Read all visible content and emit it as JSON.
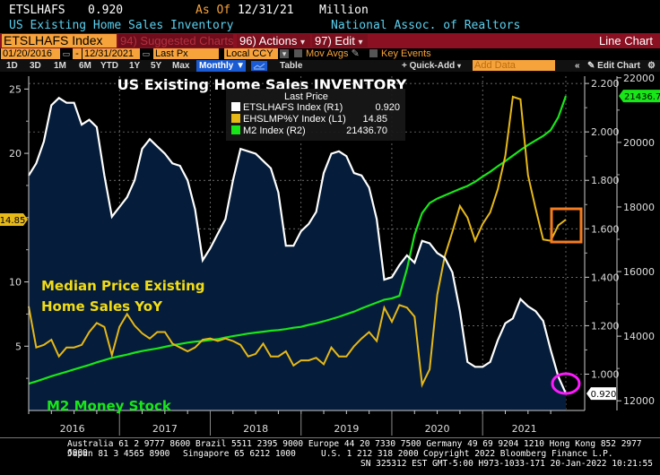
{
  "header": {
    "ticker": "ETSLHAFS",
    "last_value": "0.920",
    "as_of_label": "As Of",
    "as_of_date": "12/31/21",
    "unit": "Million",
    "description": "US Existing Home Sales Inventory",
    "source": "National Assoc. of Realtors"
  },
  "toolbar": {
    "security": "ETSLHAFS Index",
    "suggested_charts": "94) Suggested Charts",
    "actions": "96) Actions",
    "edit": "97) Edit",
    "chart_type": "Line Chart",
    "start_date": "01/20/2016",
    "date_sep": "-",
    "end_date": "12/31/2021",
    "price_field": "Last Px",
    "currency": "Local CCY",
    "mov_avgs": "Mov Avgs",
    "key_events": "Key Events",
    "periods": [
      "1D",
      "3D",
      "1M",
      "6M",
      "YTD",
      "1Y",
      "5Y",
      "Max"
    ],
    "frequency": "Monthly",
    "table": "Table",
    "quick_add": "+ Quick-Add",
    "add_data_placeholder": "Add Data",
    "edit_chart": "Edit Chart",
    "collapse": "«"
  },
  "legend": {
    "header": "Last Price",
    "items": [
      {
        "name": "ETSLHAFS Index  (R1)",
        "value": "0.920",
        "color": "#ffffff"
      },
      {
        "name": "EHSLMP%Y Index  (L1)",
        "value": "14.85",
        "color": "#e6b818"
      },
      {
        "name": "M2 Index  (R2)",
        "value": "21436.70",
        "color": "#19e619"
      }
    ]
  },
  "annotations": {
    "median_price_line1": "Median Price Existing",
    "median_price_line2": "Home Sales YoY",
    "m2": "M2 Money Stock"
  },
  "chart_data": {
    "type": "line",
    "title": "US Existing Home Sales INVENTORY",
    "x": [
      "2016-01",
      "2016-02",
      "2016-03",
      "2016-04",
      "2016-05",
      "2016-06",
      "2016-07",
      "2016-08",
      "2016-09",
      "2016-10",
      "2016-11",
      "2016-12",
      "2017-01",
      "2017-02",
      "2017-03",
      "2017-04",
      "2017-05",
      "2017-06",
      "2017-07",
      "2017-08",
      "2017-09",
      "2017-10",
      "2017-11",
      "2017-12",
      "2018-01",
      "2018-02",
      "2018-03",
      "2018-04",
      "2018-05",
      "2018-06",
      "2018-07",
      "2018-08",
      "2018-09",
      "2018-10",
      "2018-11",
      "2018-12",
      "2019-01",
      "2019-02",
      "2019-03",
      "2019-04",
      "2019-05",
      "2019-06",
      "2019-07",
      "2019-08",
      "2019-09",
      "2019-10",
      "2019-11",
      "2019-12",
      "2020-01",
      "2020-02",
      "2020-03",
      "2020-04",
      "2020-05",
      "2020-06",
      "2020-07",
      "2020-08",
      "2020-09",
      "2020-10",
      "2020-11",
      "2020-12",
      "2021-01",
      "2021-02",
      "2021-03",
      "2021-04",
      "2021-05",
      "2021-06",
      "2021-07",
      "2021-08",
      "2021-09",
      "2021-10",
      "2021-11",
      "2021-12"
    ],
    "x_tick_labels": [
      "2016",
      "2017",
      "2018",
      "2019",
      "2020",
      "2021"
    ],
    "series": [
      {
        "name": "ETSLHAFS Index (R1)",
        "axis": "R1",
        "color": "#ffffff",
        "fill": "#051d3a",
        "last": "0.920",
        "values": [
          1.82,
          1.87,
          1.96,
          2.11,
          2.14,
          2.12,
          2.12,
          2.03,
          2.05,
          2.02,
          1.82,
          1.65,
          1.69,
          1.73,
          1.8,
          1.93,
          1.97,
          1.94,
          1.91,
          1.87,
          1.86,
          1.8,
          1.68,
          1.47,
          1.52,
          1.58,
          1.64,
          1.8,
          1.93,
          1.92,
          1.91,
          1.88,
          1.85,
          1.75,
          1.53,
          1.53,
          1.59,
          1.62,
          1.67,
          1.83,
          1.91,
          1.92,
          1.9,
          1.83,
          1.82,
          1.77,
          1.64,
          1.39,
          1.4,
          1.45,
          1.49,
          1.46,
          1.55,
          1.54,
          1.5,
          1.48,
          1.42,
          1.26,
          1.05,
          1.03,
          1.03,
          1.05,
          1.14,
          1.21,
          1.23,
          1.31,
          1.28,
          1.26,
          1.22,
          1.1,
          0.99,
          0.92
        ]
      },
      {
        "name": "EHSLMP%Y Index (L1)",
        "axis": "L1",
        "color": "#e6b818",
        "last": "14.85",
        "values": [
          8.1,
          4.9,
          5.1,
          5.5,
          4.2,
          4.9,
          4.9,
          5.1,
          6.1,
          6.8,
          6.5,
          4.3,
          6.5,
          7.5,
          6.6,
          6.0,
          5.6,
          6.1,
          6.1,
          5.2,
          4.9,
          4.6,
          4.9,
          5.5,
          5.6,
          5.4,
          5.6,
          5.4,
          5.1,
          4.2,
          4.4,
          5.2,
          4.2,
          4.2,
          4.6,
          3.5,
          3.9,
          3.9,
          4.1,
          3.6,
          4.9,
          4.2,
          4.2,
          5.0,
          5.6,
          6.1,
          5.4,
          8.0,
          6.9,
          8.2,
          8.0,
          7.3,
          2.0,
          3.2,
          9.0,
          12.0,
          13.9,
          15.9,
          15.0,
          13.2,
          14.5,
          15.4,
          17.2,
          19.8,
          24.4,
          24.2,
          18.3,
          15.7,
          13.3,
          13.2,
          14.4,
          14.85
        ]
      },
      {
        "name": "M2 Index (R2)",
        "axis": "R2",
        "color": "#19e619",
        "last": "21436.70",
        "values": [
          12530,
          12600,
          12680,
          12760,
          12830,
          12900,
          12970,
          13040,
          13110,
          13190,
          13260,
          13330,
          13380,
          13430,
          13490,
          13540,
          13580,
          13620,
          13670,
          13720,
          13760,
          13800,
          13830,
          13850,
          13880,
          13910,
          13960,
          14000,
          14040,
          14080,
          14110,
          14140,
          14170,
          14190,
          14220,
          14260,
          14290,
          14350,
          14400,
          14460,
          14530,
          14600,
          14680,
          14760,
          14860,
          14950,
          15040,
          15130,
          15170,
          15250,
          16080,
          17140,
          17810,
          18120,
          18260,
          18360,
          18460,
          18560,
          18650,
          18780,
          18940,
          19090,
          19260,
          19420,
          19590,
          19760,
          19920,
          20060,
          20200,
          20380,
          20780,
          21436.7
        ]
      }
    ],
    "axes": {
      "L1": {
        "side": "left",
        "range": [
          0,
          26
        ],
        "ticks": [
          5,
          10,
          15,
          20,
          25
        ],
        "tick_labels": [
          "5",
          "10",
          "",
          "20",
          "25"
        ],
        "last_tag": "14.85"
      },
      "R1": {
        "side": "right",
        "range": [
          0.85,
          2.23
        ],
        "ticks": [
          1.0,
          1.2,
          1.4,
          1.6,
          1.8,
          2.0,
          2.2
        ],
        "tick_labels": [
          "1.000",
          "1.200",
          "1.400",
          "1.600",
          "1.800",
          "2.000",
          "2.200"
        ],
        "last_tag": "0.920"
      },
      "R2": {
        "side": "right",
        "range": [
          11700,
          22050
        ],
        "ticks": [
          12000,
          14000,
          16000,
          18000,
          20000,
          22000
        ],
        "tick_labels": [
          "12000",
          "14000",
          "16000",
          "18000",
          "20000",
          "22000"
        ],
        "last_tag": "21436.70"
      }
    },
    "grid": true,
    "legend_position": "top-center",
    "highlights": [
      {
        "type": "rectangle",
        "color": "#f57c20",
        "target": "EHSLMP%Y latest values"
      },
      {
        "type": "ellipse",
        "color": "#ff19ff",
        "target": "ETSLHAFS last value"
      }
    ]
  },
  "footer": {
    "line1": "Australia 61 2 9777 8600 Brazil 5511 2395 9000 Europe 44 20 7330 7500 Germany 49 69 9204 1210 Hong Kong 852 2977 6000",
    "line2_japan": "Japan 81 3 4565 8900",
    "line2_singapore": "Singapore 65 6212 1000",
    "line2_us": "U.S. 1 212 318 2000",
    "line2_copyright": "Copyright 2022 Bloomberg Finance L.P.",
    "line3": "SN 325312 EST  GMT-5:00 H973-1033-171 20-Jan-2022 10:21:55"
  }
}
